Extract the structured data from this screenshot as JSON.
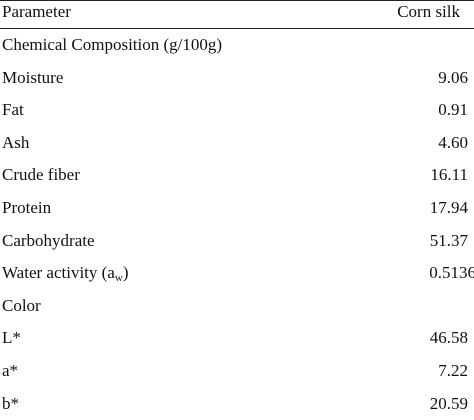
{
  "table": {
    "header": [
      "Parameter",
      "Corn silk"
    ],
    "rows": [
      {
        "label": "Chemical Composition (g/100g)"
      },
      {
        "label": "Moisture",
        "value": "9.06"
      },
      {
        "label": "Fat",
        "value": "0.91"
      },
      {
        "label": "Ash",
        "value": "4.60"
      },
      {
        "label": "Crude fiber",
        "value": "16.11"
      },
      {
        "label": "Protein",
        "value": "17.94"
      },
      {
        "label": "Carbohydrate",
        "value": "51.37"
      },
      {
        "label": "Water activity (a",
        "sub": "w",
        "suffix": ")",
        "value": "0.5136"
      },
      {
        "label": "Color"
      },
      {
        "label": "L*",
        "value": "46.58"
      },
      {
        "label": "a*",
        "value": "7.22"
      },
      {
        "label": "b*",
        "value": "20.59"
      }
    ]
  }
}
